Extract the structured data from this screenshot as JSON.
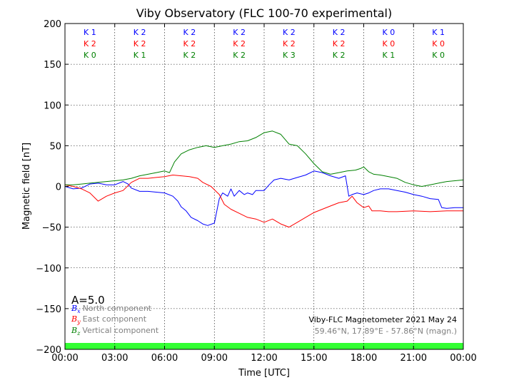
{
  "chart_data": {
    "type": "line",
    "title": "Viby Observatory (FLC 100-70 experimental)",
    "xlabel": "Time [UTC]",
    "ylabel": "Magnetic field [nT]",
    "xlim": [
      0,
      24
    ],
    "ylim": [
      -200,
      200
    ],
    "x_ticks": [
      0,
      3,
      6,
      9,
      12,
      15,
      18,
      21,
      24
    ],
    "x_tick_labels": [
      "00:00",
      "03:00",
      "06:00",
      "09:00",
      "12:00",
      "15:00",
      "18:00",
      "21:00",
      "00:00"
    ],
    "y_ticks": [
      -200,
      -150,
      -100,
      -50,
      0,
      50,
      100,
      150,
      200
    ],
    "y_tick_labels": [
      "−200",
      "−150",
      "−100",
      "−50",
      "0",
      "50",
      "100",
      "150",
      "200"
    ],
    "grid": true,
    "a_index": "A=5.0",
    "k_indices": {
      "centers": [
        1.5,
        4.5,
        7.5,
        10.5,
        13.5,
        16.5,
        19.5,
        22.5
      ],
      "rows": [
        {
          "color": "#0000ff",
          "labels": [
            "K 1",
            "K 2",
            "K 2",
            "K 2",
            "K 2",
            "K 2",
            "K 0",
            "K 1"
          ]
        },
        {
          "color": "#ff0000",
          "labels": [
            "K 2",
            "K 2",
            "K 2",
            "K 2",
            "K 2",
            "K 2",
            "K 0",
            "K 0"
          ]
        },
        {
          "color": "#008000",
          "labels": [
            "K 0",
            "K 1",
            "K 2",
            "K 2",
            "K 3",
            "K 2",
            "K 1",
            "K 0"
          ]
        }
      ]
    },
    "legend": {
      "placement": "lower-left",
      "entries": [
        {
          "symbol": "B",
          "sub": "x",
          "label": "North component",
          "color": "#0000ff"
        },
        {
          "symbol": "B",
          "sub": "y",
          "label": "East component",
          "color": "#ff0000"
        },
        {
          "symbol": "B",
          "sub": "z",
          "label": "Vertical component",
          "color": "#008000"
        }
      ]
    },
    "info_line1": "Viby-FLC Magnetometer 2021 May 24",
    "info_line2": "59.46°N, 17.89°E - 57.86°N (magn.)",
    "status_bar_color": "#33ff33",
    "series": [
      {
        "name": "North component",
        "color": "#0000ff",
        "x": [
          0,
          0.5,
          1,
          1.5,
          2,
          2.5,
          3,
          3.5,
          3.8,
          4,
          4.5,
          5,
          5.5,
          6,
          6.5,
          6.8,
          7,
          7.3,
          7.6,
          8,
          8.3,
          8.6,
          9,
          9.3,
          9.5,
          9.8,
          10,
          10.2,
          10.5,
          10.8,
          11,
          11.3,
          11.5,
          12,
          12.3,
          12.6,
          13,
          13.5,
          14,
          14.5,
          15,
          15.5,
          16,
          16.5,
          16.9,
          17.1,
          17.3,
          17.6,
          18,
          18.3,
          18.6,
          19,
          19.5,
          20,
          20.5,
          21,
          21.5,
          22,
          22.5,
          22.7,
          23,
          23.5,
          24
        ],
        "y": [
          0,
          -3,
          -2,
          3,
          4,
          2,
          2,
          6,
          3,
          -2,
          -6,
          -6,
          -7,
          -8,
          -12,
          -18,
          -25,
          -30,
          -38,
          -42,
          -46,
          -48,
          -45,
          -15,
          -8,
          -12,
          -3,
          -12,
          -5,
          -10,
          -8,
          -10,
          -5,
          -5,
          2,
          8,
          10,
          8,
          11,
          14,
          19,
          17,
          13,
          10,
          13,
          -12,
          -10,
          -8,
          -10,
          -8,
          -5,
          -3,
          -3,
          -5,
          -7,
          -10,
          -12,
          -15,
          -16,
          -26,
          -27,
          -26,
          -26
        ]
      },
      {
        "name": "East component",
        "color": "#ff0000",
        "x": [
          0,
          0.5,
          1,
          1.5,
          2,
          2.5,
          3,
          3.5,
          4,
          4.5,
          5,
          5.5,
          6,
          6.5,
          7,
          7.5,
          8,
          8.3,
          8.8,
          9.3,
          9.6,
          10,
          10.5,
          11,
          11.5,
          12,
          12.5,
          13,
          13.5,
          14,
          14.5,
          15,
          15.5,
          16,
          16.5,
          17,
          17.3,
          17.6,
          18,
          18.3,
          18.5,
          19,
          19.5,
          20,
          21,
          22,
          23,
          24
        ],
        "y": [
          2,
          0,
          -3,
          -8,
          -18,
          -12,
          -8,
          -5,
          5,
          10,
          10,
          11,
          12,
          14,
          13,
          12,
          10,
          5,
          0,
          -10,
          -22,
          -28,
          -33,
          -38,
          -40,
          -44,
          -40,
          -46,
          -50,
          -44,
          -38,
          -32,
          -28,
          -24,
          -20,
          -18,
          -12,
          -20,
          -26,
          -24,
          -30,
          -30,
          -31,
          -31,
          -30,
          -31,
          -30,
          -30
        ]
      },
      {
        "name": "Vertical component",
        "color": "#008000",
        "x": [
          0,
          0.5,
          1,
          1.5,
          2,
          2.5,
          3,
          3.5,
          4,
          4.5,
          5,
          5.5,
          6,
          6.3,
          6.6,
          7,
          7.5,
          8,
          8.5,
          9,
          9.5,
          10,
          10.5,
          11,
          11.5,
          12,
          12.5,
          13,
          13.5,
          14,
          14.5,
          15,
          15.5,
          16,
          16.5,
          17,
          17.5,
          17.8,
          18,
          18.3,
          18.6,
          19,
          19.5,
          20,
          20.5,
          21,
          21.5,
          22,
          22.5,
          23,
          23.5,
          24
        ],
        "y": [
          2,
          2,
          3,
          4,
          5,
          6,
          7,
          8,
          10,
          13,
          15,
          17,
          19,
          17,
          30,
          40,
          45,
          48,
          50,
          48,
          50,
          52,
          55,
          56,
          60,
          66,
          68,
          64,
          52,
          50,
          40,
          28,
          18,
          15,
          17,
          19,
          20,
          22,
          24,
          18,
          15,
          14,
          12,
          10,
          5,
          2,
          0,
          2,
          4,
          6,
          7,
          8
        ]
      }
    ]
  }
}
